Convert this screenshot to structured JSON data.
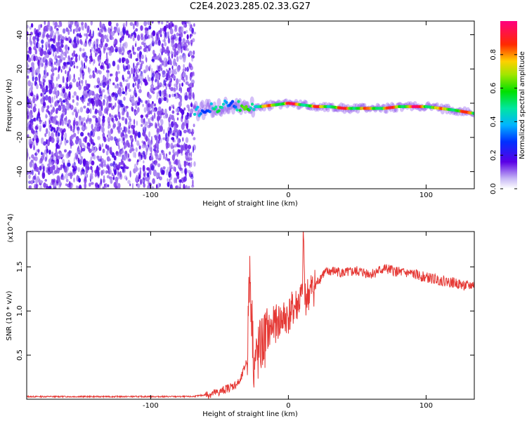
{
  "title": "C2E4.2023.285.02.33.G27",
  "chart_data": [
    {
      "type": "heatmap",
      "title": "C2E4.2023.285.02.33.G27",
      "xlabel": "Height of straight line (km)",
      "ylabel": "Frequency (Hz)",
      "xlim": [
        -190,
        135
      ],
      "ylim": [
        -50,
        48
      ],
      "x_ticks": [
        -100,
        0,
        100
      ],
      "y_ticks": [
        -40,
        -20,
        0,
        20,
        40
      ],
      "colorbar": {
        "label": "Normalized spectral amplitude",
        "range": [
          0,
          1
        ],
        "ticks": [
          0.0,
          0.2,
          0.4,
          0.6,
          0.8
        ],
        "tick_labels": [
          "0.0",
          "0.2",
          "0.4",
          "0.6",
          "0.8"
        ]
      },
      "noise_region_x": [
        -190,
        -68
      ],
      "signal_track": {
        "x": [
          -68,
          -60,
          -50,
          -40,
          -30,
          -20,
          -10,
          0,
          10,
          20,
          30,
          40,
          50,
          60,
          70,
          80,
          90,
          100,
          110,
          120,
          135
        ],
        "frequency": [
          -5,
          -4,
          -2,
          -1,
          -2,
          -2,
          -1,
          0,
          -1,
          -2,
          -2,
          -3,
          -3,
          -3,
          -3,
          -2,
          -2,
          -2,
          -3,
          -4,
          -6
        ],
        "amplitude": [
          0.45,
          0.5,
          0.55,
          0.5,
          0.7,
          0.8,
          0.9,
          1.0,
          0.85,
          0.9,
          0.8,
          0.95,
          0.9,
          0.85,
          0.95,
          0.9,
          1.0,
          0.9,
          0.85,
          0.9,
          0.85
        ]
      }
    },
    {
      "type": "line",
      "xlabel": "Height of straight line (km)",
      "ylabel": "SNR (10 * v/v)",
      "y_multiplier": "(x10^4)",
      "xlim": [
        -190,
        135
      ],
      "ylim": [
        0,
        1.9
      ],
      "x_ticks": [
        -100,
        0,
        100
      ],
      "y_ticks": [
        0.5,
        1.0,
        1.5
      ],
      "y_tick_labels": [
        "0.5",
        "1.0",
        "1.5"
      ],
      "series": [
        {
          "color": "#e53935",
          "x": [
            -190,
            -150,
            -100,
            -70,
            -60,
            -50,
            -45,
            -40,
            -35,
            -30,
            -28,
            -25,
            -22,
            -20,
            -15,
            -10,
            -5,
            0,
            5,
            10,
            11,
            12,
            15,
            20,
            25,
            30,
            35,
            40,
            50,
            60,
            70,
            80,
            90,
            100,
            110,
            120,
            130,
            135
          ],
          "values": [
            0.03,
            0.03,
            0.03,
            0.03,
            0.05,
            0.08,
            0.12,
            0.15,
            0.2,
            0.45,
            1.45,
            0.4,
            0.5,
            0.6,
            0.75,
            0.85,
            0.9,
            0.95,
            1.05,
            1.15,
            1.9,
            1.15,
            1.2,
            1.3,
            1.42,
            1.45,
            1.45,
            1.43,
            1.45,
            1.42,
            1.48,
            1.44,
            1.42,
            1.38,
            1.35,
            1.32,
            1.28,
            1.3
          ]
        }
      ]
    }
  ]
}
